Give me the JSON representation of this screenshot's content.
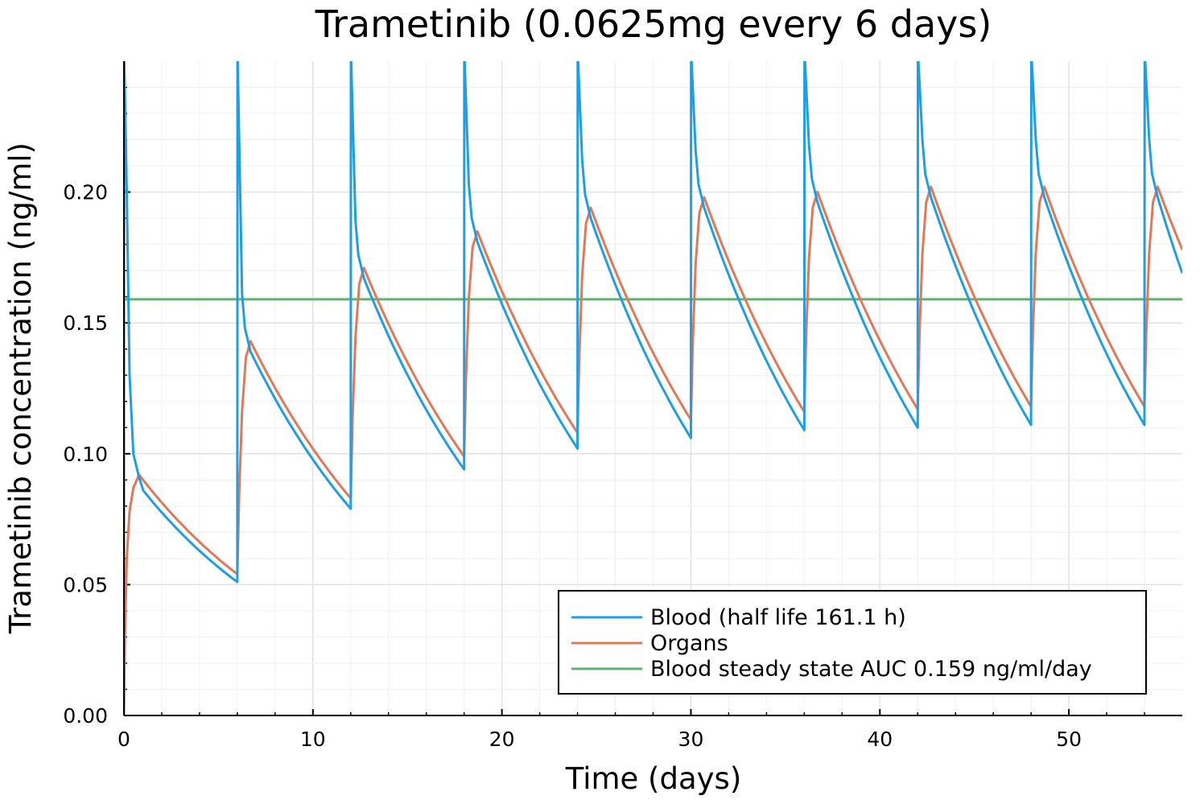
{
  "chart_data": {
    "type": "line",
    "title": "Trametinib  (0.0625mg every 6 days)",
    "xlabel": "Time (days)",
    "ylabel": "Trametinib concentration (ng/ml)",
    "xlim": [
      0,
      56
    ],
    "ylim": [
      0,
      0.25
    ],
    "x_ticks": [
      "0",
      "10",
      "20",
      "30",
      "40",
      "50"
    ],
    "y_ticks": [
      "0.00",
      "0.05",
      "0.10",
      "0.15",
      "0.20"
    ],
    "grid": true,
    "legend_position": "bottom-right",
    "dose_times": [
      0,
      6,
      12,
      18,
      24,
      30,
      36,
      42,
      48,
      54
    ],
    "series": [
      {
        "name": "Blood (half life 161.1 h)",
        "color": "#1f9ee8",
        "trough_values": [
          0.051,
          0.079,
          0.094,
          0.102,
          0.106,
          0.109,
          0.11,
          0.111,
          0.111
        ],
        "end_value": 0.169
      },
      {
        "name": "Organs",
        "color": "#e0785a",
        "peaks": [
          {
            "x": 0.8,
            "y": 0.092
          },
          {
            "x": 6.7,
            "y": 0.143
          },
          {
            "x": 12.7,
            "y": 0.171
          },
          {
            "x": 18.7,
            "y": 0.185
          },
          {
            "x": 24.7,
            "y": 0.194
          },
          {
            "x": 30.7,
            "y": 0.198
          },
          {
            "x": 36.7,
            "y": 0.2
          },
          {
            "x": 42.7,
            "y": 0.202
          },
          {
            "x": 48.7,
            "y": 0.202
          },
          {
            "x": 54.7,
            "y": 0.202
          }
        ],
        "trough_values": [
          0.054,
          0.083,
          0.099,
          0.108,
          0.113,
          0.116,
          0.117,
          0.118,
          0.118
        ],
        "end_value": 0.178
      },
      {
        "name": "Blood steady state AUC 0.159 ng/ml/day",
        "color": "#5eb26a",
        "value": 0.159
      }
    ]
  }
}
